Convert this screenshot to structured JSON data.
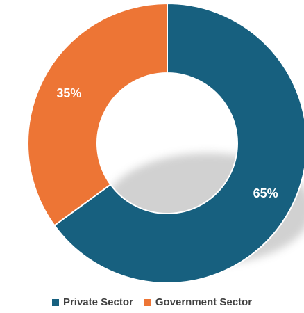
{
  "chart_data": {
    "type": "pie",
    "variant": "donut",
    "categories": [
      "Private Sector",
      "Government Sector"
    ],
    "values": [
      65,
      35
    ],
    "data_labels": [
      "65%",
      "35%"
    ],
    "colors": [
      "#17607f",
      "#ed7535"
    ],
    "title": "",
    "legend": {
      "position": "bottom",
      "entries": [
        "Private Sector",
        "Government Sector"
      ]
    }
  }
}
